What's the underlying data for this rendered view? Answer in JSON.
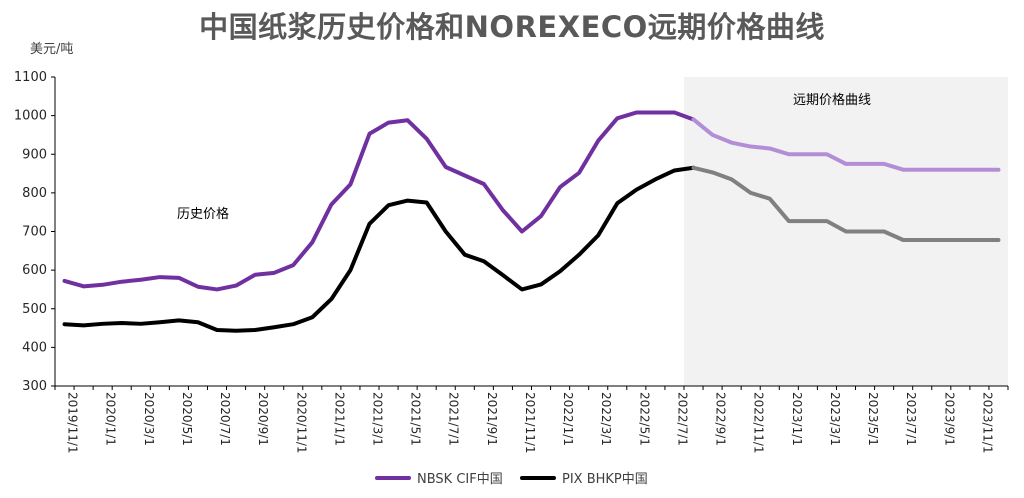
{
  "title": "中国纸浆历史价格和NOREXECO远期价格曲线",
  "unit_label": "美元/吨",
  "chart_data": {
    "type": "line",
    "ylim": [
      300,
      1100
    ],
    "yticks": [
      300,
      400,
      500,
      600,
      700,
      800,
      900,
      1000,
      1100
    ],
    "x_tick_labels": [
      "2019/11/1",
      "2020/1/1",
      "2020/3/1",
      "2020/5/1",
      "2020/7/1",
      "2020/9/1",
      "2020/11/1",
      "2021/1/1",
      "2021/3/1",
      "2021/5/1",
      "2021/7/1",
      "2021/9/1",
      "2021/11/1",
      "2022/1/1",
      "2022/3/1",
      "2022/5/1",
      "2022/7/1",
      "2022/9/1",
      "2022/11/1",
      "2023/1/1",
      "2023/3/1",
      "2023/5/1",
      "2023/7/1",
      "2023/9/1",
      "2023/11/1"
    ],
    "x": [
      "2019/11",
      "2019/12",
      "2020/1",
      "2020/2",
      "2020/3",
      "2020/4",
      "2020/5",
      "2020/6",
      "2020/7",
      "2020/8",
      "2020/9",
      "2020/10",
      "2020/11",
      "2020/12",
      "2021/1",
      "2021/2",
      "2021/3",
      "2021/4",
      "2021/5",
      "2021/6",
      "2021/7",
      "2021/8",
      "2021/9",
      "2021/10",
      "2021/11",
      "2021/12",
      "2022/1",
      "2022/2",
      "2022/3",
      "2022/4",
      "2022/5",
      "2022/6",
      "2022/7",
      "2022/8",
      "2022/9",
      "2022/10",
      "2022/11",
      "2022/12",
      "2023/1",
      "2023/2",
      "2023/3",
      "2023/4",
      "2023/5",
      "2023/6",
      "2023/7",
      "2023/8",
      "2023/9",
      "2023/10",
      "2023/11",
      "2023/12"
    ],
    "forecast_start_index": 33,
    "forecast_region_label": "远期价格曲线",
    "history_label": "历史价格",
    "series": [
      {
        "name": "NBSK CIF中国",
        "color": "#7030A0",
        "forecast_color": "#B38ED6",
        "values": [
          572,
          558,
          562,
          570,
          575,
          582,
          580,
          557,
          550,
          560,
          588,
          593,
          613,
          672,
          770,
          822,
          953,
          982,
          988,
          940,
          867,
          845,
          823,
          755,
          700,
          740,
          815,
          852,
          935,
          993,
          1008,
          1008,
          1008,
          990,
          950,
          930,
          920,
          915,
          900,
          900,
          900,
          875,
          875,
          875,
          860,
          860,
          860,
          860,
          860,
          860
        ]
      },
      {
        "name": "PIX BHKP中国",
        "color": "#000000",
        "forecast_color": "#808080",
        "values": [
          460,
          457,
          461,
          463,
          461,
          465,
          470,
          465,
          445,
          443,
          445,
          452,
          460,
          478,
          525,
          600,
          720,
          768,
          780,
          775,
          700,
          640,
          623,
          587,
          550,
          563,
          597,
          640,
          690,
          773,
          808,
          835,
          858,
          865,
          853,
          835,
          800,
          785,
          727,
          727,
          727,
          700,
          700,
          700,
          678,
          678,
          678,
          678,
          678,
          678
        ]
      }
    ],
    "legend_position": "bottom",
    "grid": false
  }
}
